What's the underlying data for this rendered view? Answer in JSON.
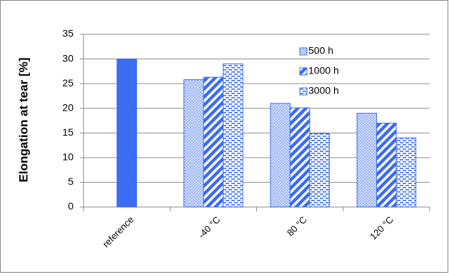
{
  "chart_data": {
    "type": "bar",
    "y_label": "Elongation at tear [%]",
    "categories": [
      "reference",
      "-40 °C",
      "80 °C",
      "120 °C"
    ],
    "series": [
      {
        "color": "#3b6cf2",
        "pattern": "solid",
        "values": [
          30,
          null,
          null,
          null
        ]
      },
      {
        "name": "500 h",
        "color": "#3b6cf2",
        "pattern": "dots",
        "values": [
          null,
          25.8,
          21,
          19
        ]
      },
      {
        "name": "1000 h",
        "color": "#3b6cf2",
        "pattern": "stripes",
        "values": [
          null,
          26.3,
          20.1,
          17
        ]
      },
      {
        "name": "3000 h",
        "color": "#3b6cf2",
        "pattern": "dashes",
        "values": [
          null,
          29,
          14.9,
          14
        ]
      }
    ],
    "ylim": [
      0,
      35
    ],
    "yticks": [
      0,
      5,
      10,
      15,
      20,
      25,
      30,
      35
    ],
    "grid": true
  }
}
